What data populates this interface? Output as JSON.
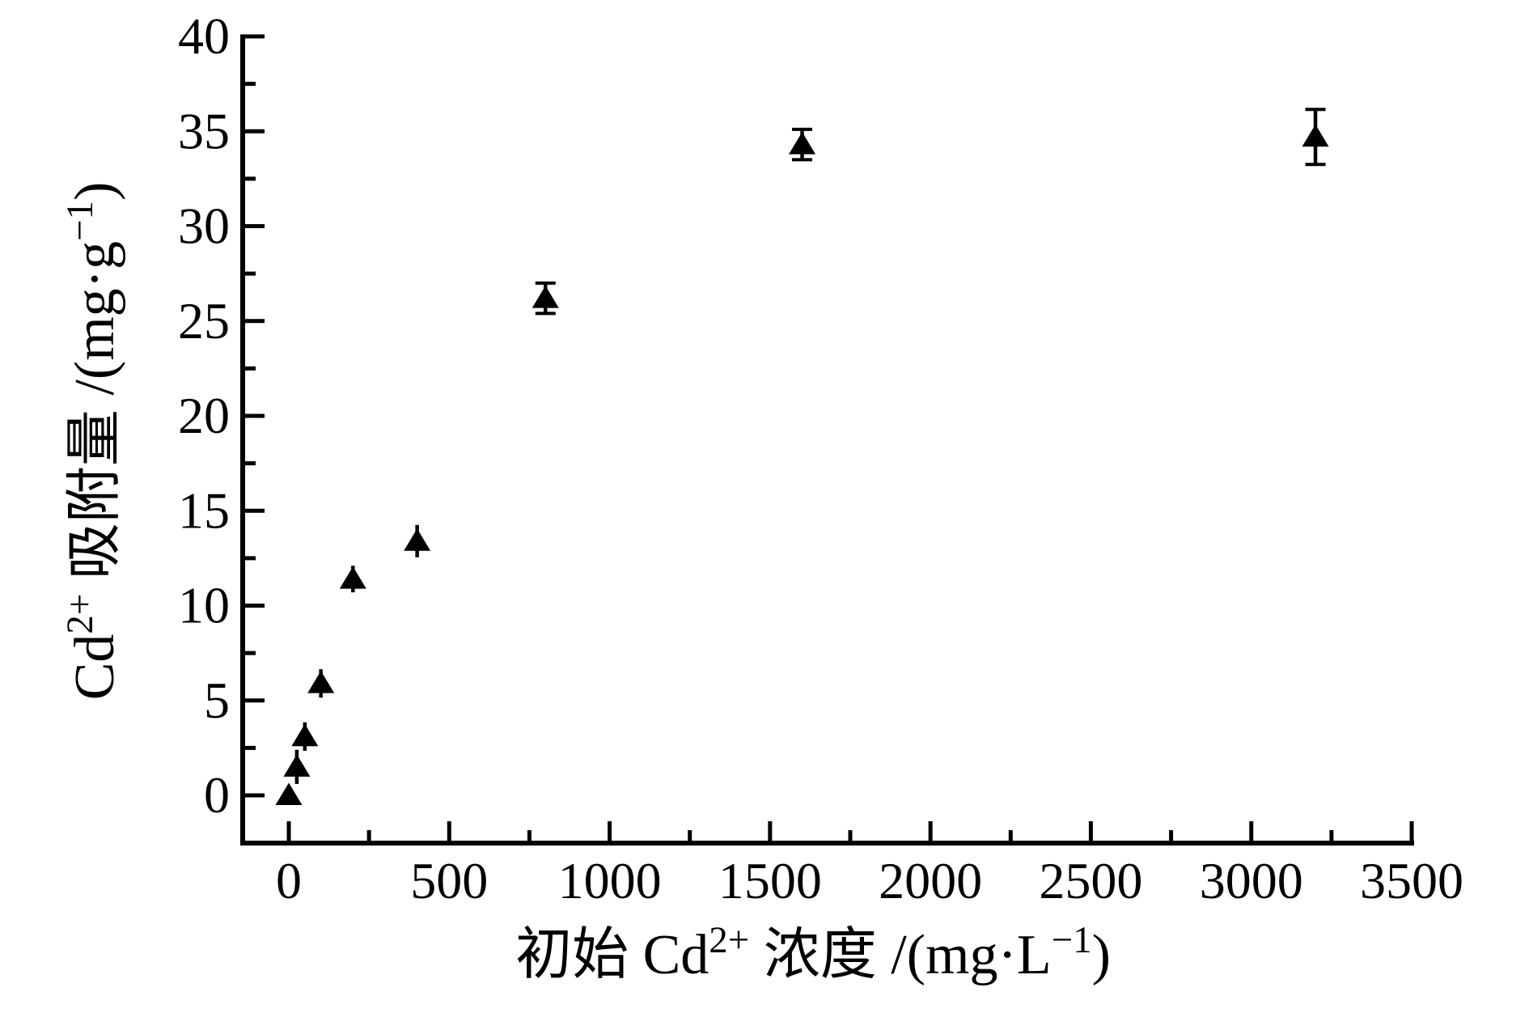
{
  "chart_data": {
    "type": "scatter",
    "title": "",
    "xlabel": "初始 Cd²⁺ 浓度 /(mg·L⁻¹)",
    "ylabel": "Cd²⁺ 吸附量 /(mg·g⁻¹)",
    "xlabel_runs": [
      {
        "text": "初始 Cd",
        "sup": false
      },
      {
        "text": "2+",
        "sup": true
      },
      {
        "text": " 浓度 /(mg·L",
        "sup": false
      },
      {
        "text": "−1",
        "sup": true
      },
      {
        "text": ")",
        "sup": false
      }
    ],
    "ylabel_runs": [
      {
        "text": "Cd",
        "sup": false
      },
      {
        "text": "2+",
        "sup": true
      },
      {
        "text": " 吸附量 /(mg·g",
        "sup": false
      },
      {
        "text": "−1",
        "sup": true
      },
      {
        "text": ")",
        "sup": false
      }
    ],
    "xlim": [
      0,
      3500
    ],
    "ylim": [
      0,
      40
    ],
    "xticks": [
      0,
      500,
      1000,
      1500,
      2000,
      2500,
      3000,
      3500
    ],
    "yticks": [
      0,
      5,
      10,
      15,
      20,
      25,
      30,
      35,
      40
    ],
    "x_minor_step": 250,
    "y_minor_step": 2.5,
    "grid": false,
    "legend": "none",
    "marker": "filled-triangle-up",
    "marker_color": "#000000",
    "axis_color": "#000000",
    "background_color": "#ffffff",
    "points": [
      {
        "x": 0,
        "y": 0.0,
        "yerr": 0,
        "caps": false
      },
      {
        "x": 25,
        "y": 1.5,
        "yerr": 0.9,
        "caps": false
      },
      {
        "x": 50,
        "y": 3.1,
        "yerr": 0.75,
        "caps": false
      },
      {
        "x": 100,
        "y": 5.9,
        "yerr": 0.75,
        "caps": false
      },
      {
        "x": 200,
        "y": 11.4,
        "yerr": 0.7,
        "caps": false
      },
      {
        "x": 400,
        "y": 13.4,
        "yerr": 0.85,
        "caps": false
      },
      {
        "x": 800,
        "y": 26.2,
        "yerr": 0.8,
        "caps": true
      },
      {
        "x": 1600,
        "y": 34.3,
        "yerr": 0.8,
        "caps": true
      },
      {
        "x": 3200,
        "y": 34.7,
        "yerr": 1.45,
        "caps": true
      }
    ]
  }
}
